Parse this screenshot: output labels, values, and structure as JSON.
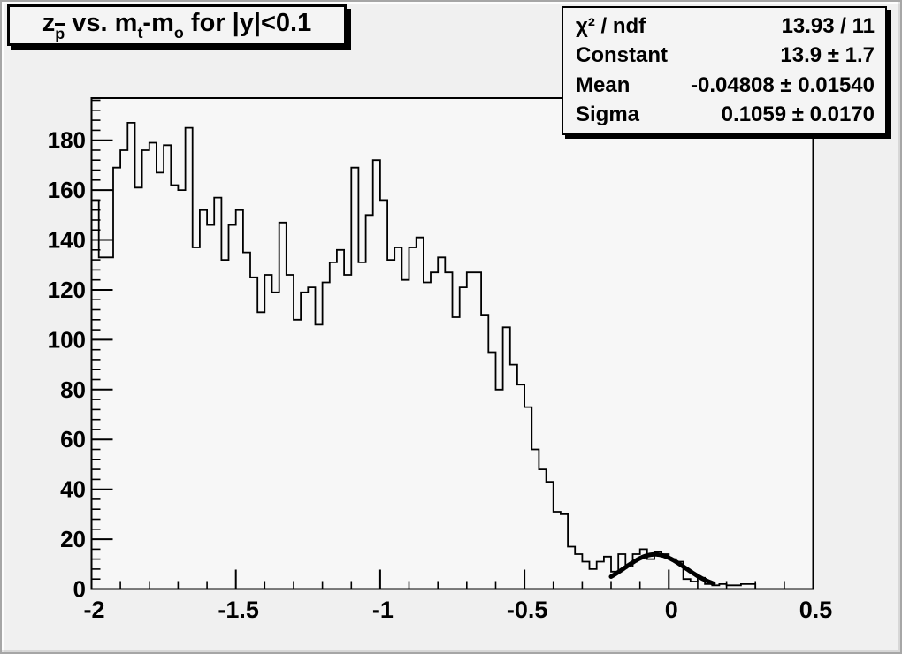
{
  "title": {
    "full_text": "z_p̄ vs. m_t-m_o for |y|<0.1",
    "segments": [
      {
        "text": "z"
      },
      {
        "sub": "p",
        "overline": true
      },
      {
        "text": " vs. m"
      },
      {
        "sub": "t"
      },
      {
        "text": "-m"
      },
      {
        "sub": "o"
      },
      {
        "text": " for |y|<0.1"
      }
    ]
  },
  "stats": {
    "rows": [
      {
        "label": "χ² / ndf",
        "value": "13.93 / 11"
      },
      {
        "label": "Constant",
        "value": "13.9 ± 1.7"
      },
      {
        "label": "Mean",
        "value": "-0.04808 ± 0.01540"
      },
      {
        "label": "Sigma",
        "value": "0.1059 ± 0.0170"
      }
    ]
  },
  "chart_data": {
    "type": "bar",
    "subtype": "step-histogram",
    "title": "z_p̄ vs. m_t-m_o for |y|<0.1",
    "xlabel": "",
    "ylabel": "",
    "xlim": [
      -2,
      0.5
    ],
    "ylim": [
      0,
      196.9
    ],
    "grid": false,
    "legend_position": "none",
    "bin_start": -2,
    "bin_width": 0.025,
    "values": [
      156,
      133,
      133,
      169,
      176,
      187,
      161,
      176,
      179,
      167,
      178,
      162,
      160,
      185,
      137,
      152,
      146,
      157,
      132,
      146,
      152,
      135,
      125,
      111,
      126,
      119,
      147,
      126,
      108,
      119,
      121,
      106,
      123,
      131,
      136,
      126,
      169,
      131,
      150,
      172,
      156,
      132,
      137,
      124,
      137,
      141,
      123,
      127,
      133,
      127,
      109,
      121,
      127,
      127,
      110,
      95,
      80,
      105,
      90,
      82,
      73,
      56,
      48,
      43,
      31,
      30,
      17,
      14,
      11,
      8,
      11,
      13,
      7,
      14,
      9,
      14,
      16,
      12,
      15,
      14,
      12,
      11,
      4,
      3,
      4.5,
      2,
      1.5,
      2,
      1.5,
      1.5,
      2,
      2,
      0,
      0,
      0,
      0,
      0,
      0,
      0,
      0
    ],
    "x_major_ticks": [
      -2,
      -1.5,
      -1,
      -0.5,
      0,
      0.5
    ],
    "x_tick_labels": [
      "-2",
      "-1.5",
      "-1",
      "-0.5",
      "0",
      "0.5"
    ],
    "x_minor_step": 0.1,
    "y_major_ticks": [
      0,
      20,
      40,
      60,
      80,
      100,
      120,
      140,
      160,
      180
    ],
    "y_tick_labels": [
      "0",
      "20",
      "40",
      "60",
      "80",
      "100",
      "120",
      "140",
      "160",
      "180"
    ],
    "y_minor_step": 4,
    "fit": {
      "model": "gaussian",
      "chi2_ndf": "13.93 / 11",
      "constant": 13.9,
      "mean": -0.04808,
      "sigma": 0.1059,
      "draw_range": [
        -0.2,
        0.155
      ]
    },
    "colors": {
      "hist_line": "#000000",
      "fit_line": "#000000",
      "canvas_bg": "#f0f0f0",
      "frame_bg": "#f7f7f7",
      "text": "#000000"
    }
  }
}
